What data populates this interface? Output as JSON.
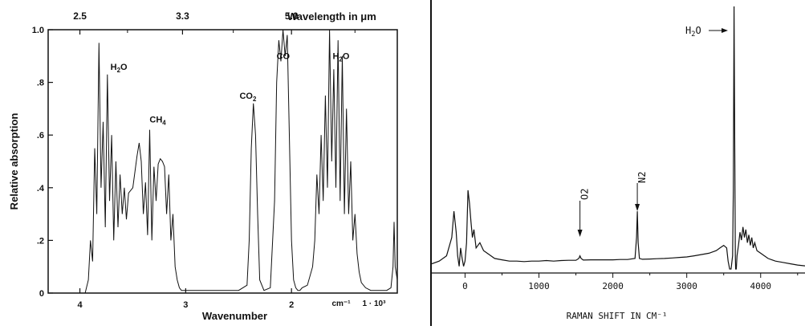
{
  "chart_data": [
    {
      "type": "line",
      "title": "",
      "xlabel": "Wavenumber",
      "ylabel": "Relative absorption",
      "top_axis_label": "Wavelength in μm",
      "top_axis_ticks": [
        "2.5",
        "3.3",
        "5.0"
      ],
      "x_unit_label": "cm⁻¹",
      "x_multiplier_label": "1 · 10³",
      "xlim": [
        4.3,
        1.0
      ],
      "ylim": [
        0,
        1.0
      ],
      "x_tick_labels": [
        "4",
        "3",
        "2"
      ],
      "y_tick_labels": [
        "0",
        ".2",
        ".4",
        ".6",
        ".8",
        "1.0"
      ],
      "y_ticks": [
        0,
        0.2,
        0.4,
        0.6,
        0.8,
        1.0
      ],
      "annotations": [
        {
          "label": "H2O",
          "main": "H",
          "sub": "2",
          "rest": "O",
          "x": 3.62,
          "y": 0.83
        },
        {
          "label": "CH4",
          "main": "CH",
          "sub": "4",
          "rest": "",
          "x": 3.25,
          "y": 0.63
        },
        {
          "label": "CO2",
          "main": "CO",
          "sub": "2",
          "rest": "",
          "x": 2.4,
          "y": 0.72
        },
        {
          "label": "CO",
          "main": "CO",
          "sub": "",
          "rest": "",
          "x": 2.05,
          "y": 0.87
        },
        {
          "label": "H2O",
          "main": "H",
          "sub": "2",
          "rest": "O",
          "x": 1.52,
          "y": 0.87
        }
      ],
      "series": [
        {
          "x": [
            4.3,
            3.95,
            3.92,
            3.9,
            3.88,
            3.86,
            3.84,
            3.82,
            3.8,
            3.78,
            3.76,
            3.74,
            3.72,
            3.7,
            3.68,
            3.66,
            3.64,
            3.62,
            3.6,
            3.58,
            3.56,
            3.54,
            3.5,
            3.46,
            3.44,
            3.42,
            3.4,
            3.38,
            3.36,
            3.34,
            3.32,
            3.3,
            3.28,
            3.26,
            3.24,
            3.22,
            3.2,
            3.18,
            3.16,
            3.14,
            3.12,
            3.1,
            3.08,
            3.06,
            3.04,
            2.9,
            2.5,
            2.42,
            2.4,
            2.38,
            2.36,
            2.34,
            2.32,
            2.3,
            2.26,
            2.2,
            2.16,
            2.14,
            2.12,
            2.1,
            2.08,
            2.06,
            2.04,
            2.02,
            2.0,
            1.98,
            1.96,
            1.94,
            1.92,
            1.9,
            1.85,
            1.8,
            1.78,
            1.76,
            1.74,
            1.72,
            1.7,
            1.68,
            1.66,
            1.64,
            1.62,
            1.6,
            1.58,
            1.56,
            1.54,
            1.52,
            1.5,
            1.48,
            1.46,
            1.44,
            1.42,
            1.4,
            1.38,
            1.36,
            1.34,
            1.3,
            1.25,
            1.2,
            1.15,
            1.1,
            1.06,
            1.04,
            1.03,
            1.02,
            1.0
          ],
          "y": [
            0.0,
            0.0,
            0.05,
            0.2,
            0.12,
            0.55,
            0.3,
            0.95,
            0.4,
            0.65,
            0.25,
            0.83,
            0.35,
            0.6,
            0.2,
            0.5,
            0.25,
            0.45,
            0.3,
            0.4,
            0.28,
            0.38,
            0.4,
            0.52,
            0.57,
            0.5,
            0.3,
            0.42,
            0.22,
            0.62,
            0.2,
            0.48,
            0.35,
            0.49,
            0.51,
            0.5,
            0.48,
            0.3,
            0.45,
            0.2,
            0.3,
            0.1,
            0.05,
            0.02,
            0.01,
            0.01,
            0.01,
            0.03,
            0.2,
            0.55,
            0.72,
            0.6,
            0.3,
            0.05,
            0.01,
            0.02,
            0.35,
            0.8,
            0.96,
            0.88,
            1.0,
            0.9,
            0.98,
            0.6,
            0.2,
            0.05,
            0.02,
            0.01,
            0.01,
            0.02,
            0.03,
            0.1,
            0.2,
            0.45,
            0.3,
            0.6,
            0.35,
            0.75,
            0.4,
            1.0,
            0.5,
            0.85,
            0.4,
            0.96,
            0.35,
            0.9,
            0.3,
            0.7,
            0.3,
            0.5,
            0.2,
            0.3,
            0.15,
            0.08,
            0.04,
            0.02,
            0.01,
            0.01,
            0.01,
            0.01,
            0.02,
            0.1,
            0.27,
            0.1,
            0.05
          ]
        }
      ]
    },
    {
      "type": "line",
      "title": "",
      "xlabel": "RAMAN SHIFT IN CM⁻¹",
      "ylabel": "",
      "xlim": [
        -450,
        4600
      ],
      "x_ticks": [
        0,
        1000,
        2000,
        3000,
        4000
      ],
      "x_tick_labels": [
        "0",
        "1000",
        "2000",
        "3000",
        "4000"
      ],
      "annotations": [
        {
          "label": "O2",
          "main": "O",
          "sub": "2",
          "x": 1555,
          "arrow_from": 0.45,
          "arrow_to": 0.18
        },
        {
          "label": "N2",
          "main": "N",
          "sub": "2",
          "x": 2331,
          "arrow_from": 0.52,
          "arrow_to": 0.22
        },
        {
          "label": "H2O",
          "main": "H",
          "sub": "2",
          "rest": "O",
          "x": 3657,
          "arrow_from": 3480,
          "arrow_to": 3640,
          "arrow_y": 1.0
        }
      ],
      "series": [
        {
          "x": [
            -450,
            -350,
            -250,
            -180,
            -150,
            -120,
            -100,
            -80,
            -60,
            -40,
            -20,
            0,
            20,
            40,
            60,
            80,
            100,
            120,
            150,
            200,
            250,
            300,
            350,
            400,
            500,
            600,
            700,
            800,
            900,
            1000,
            1100,
            1200,
            1300,
            1400,
            1500,
            1540,
            1555,
            1570,
            1600,
            1700,
            1800,
            1900,
            2000,
            2100,
            2200,
            2300,
            2320,
            2331,
            2342,
            2360,
            2400,
            2500,
            2600,
            2700,
            2800,
            2900,
            3000,
            3100,
            3200,
            3300,
            3400,
            3450,
            3500,
            3540,
            3560,
            3580,
            3600,
            3620,
            3630,
            3640,
            3650,
            3657,
            3662,
            3670,
            3680,
            3700,
            3720,
            3740,
            3760,
            3780,
            3800,
            3820,
            3840,
            3860,
            3880,
            3900,
            3920,
            3950,
            4000,
            4050,
            4100,
            4150,
            4200,
            4300,
            4400,
            4500,
            4600
          ],
          "y": [
            0.02,
            0.03,
            0.05,
            0.12,
            0.22,
            0.14,
            0.05,
            0.01,
            0.08,
            0.04,
            0.01,
            0.03,
            0.1,
            0.3,
            0.25,
            0.18,
            0.12,
            0.15,
            0.08,
            0.1,
            0.07,
            0.06,
            0.05,
            0.04,
            0.035,
            0.03,
            0.03,
            0.028,
            0.03,
            0.03,
            0.032,
            0.03,
            0.032,
            0.033,
            0.033,
            0.04,
            0.05,
            0.04,
            0.034,
            0.035,
            0.035,
            0.035,
            0.035,
            0.036,
            0.036,
            0.04,
            0.12,
            0.22,
            0.1,
            0.04,
            0.037,
            0.038,
            0.039,
            0.04,
            0.042,
            0.044,
            0.046,
            0.05,
            0.055,
            0.06,
            0.07,
            0.08,
            0.09,
            0.08,
            0.03,
            0.0,
            0.0,
            0.05,
            0.3,
            1.0,
            0.45,
            0.05,
            0.0,
            0.0,
            0.05,
            0.09,
            0.14,
            0.11,
            0.16,
            0.12,
            0.15,
            0.1,
            0.13,
            0.09,
            0.12,
            0.08,
            0.1,
            0.07,
            0.06,
            0.05,
            0.04,
            0.035,
            0.03,
            0.025,
            0.02,
            0.015,
            0.012
          ]
        }
      ]
    }
  ]
}
